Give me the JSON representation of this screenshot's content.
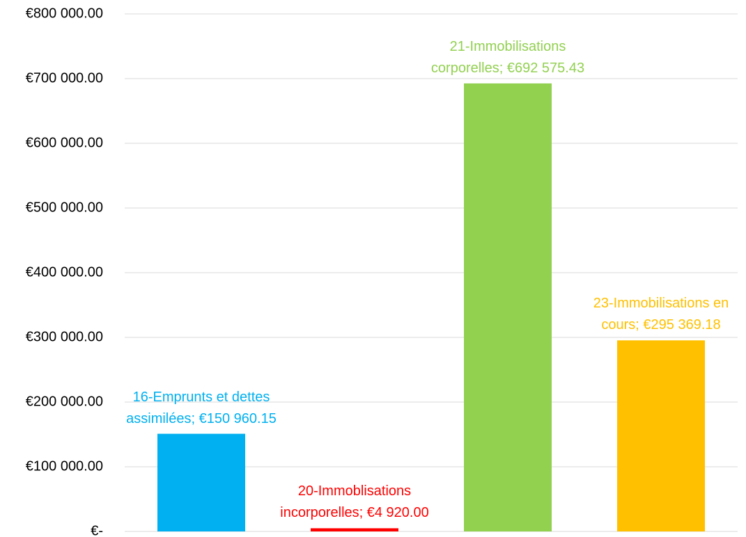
{
  "chart_data": {
    "type": "bar",
    "categories": [
      null,
      null,
      null,
      null
    ],
    "values": [
      150960.15,
      4920.0,
      692575.43,
      295369.18
    ],
    "value_labels": [
      "16-Emprunts et dettes assimilées; €150 960.15",
      "20-Immoblisations incorporelles; €4 920.00",
      "21-Immobilisations corporelles; €692 575.43",
      "23-Immobilisations en cours;  €295 369.18"
    ],
    "colors": [
      "#00b0f0",
      "#ff0000",
      "#92d050",
      "#ffc000"
    ],
    "ylim": [
      0,
      800000
    ],
    "yticks": [
      {
        "value": 0,
        "label": "€-"
      },
      {
        "value": 100000,
        "label": "€100 000.00"
      },
      {
        "value": 200000,
        "label": "€200 000.00"
      },
      {
        "value": 300000,
        "label": "€300 000.00"
      },
      {
        "value": 400000,
        "label": "€400 000.00"
      },
      {
        "value": 500000,
        "label": "€500 000.00"
      },
      {
        "value": 600000,
        "label": "€600 000.00"
      },
      {
        "value": 700000,
        "label": "€700 000.00"
      },
      {
        "value": 800000,
        "label": "€800 000.00"
      }
    ],
    "grid": true
  }
}
